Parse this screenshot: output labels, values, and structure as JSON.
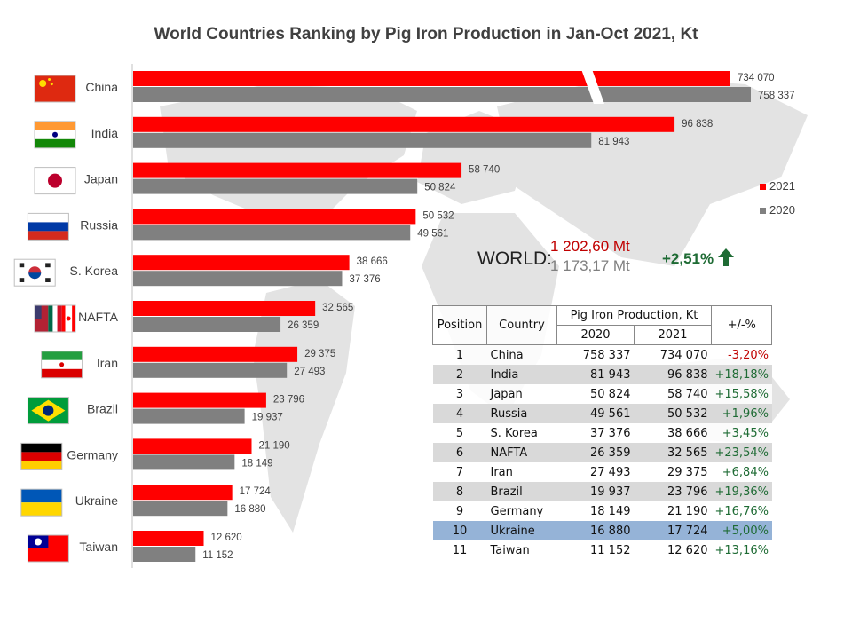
{
  "chart_data": {
    "type": "bar",
    "orientation": "horizontal",
    "title": "World Countries Ranking by Pig Iron Production in Jan-Oct 2021, Kt",
    "categories": [
      "China",
      "India",
      "Japan",
      "Russia",
      "S. Korea",
      "NAFTA",
      "Iran",
      "Brazil",
      "Germany",
      "Ukraine",
      "Taiwan"
    ],
    "series": [
      {
        "name": "2021",
        "color": "#ff0000",
        "values": [
          734070,
          96838,
          58740,
          50532,
          38666,
          32565,
          29375,
          23796,
          21190,
          17724,
          12620
        ],
        "labels": [
          "734 070",
          "96 838",
          "58 740",
          "50 532",
          "38 666",
          "32 565",
          "29 375",
          "23 796",
          "21 190",
          "17 724",
          "12 620"
        ]
      },
      {
        "name": "2020",
        "color": "#808080",
        "values": [
          758337,
          81943,
          50824,
          49561,
          37376,
          26359,
          27493,
          19937,
          18149,
          16880,
          11152
        ],
        "labels": [
          "758 337",
          "81 943",
          "50 824",
          "49 561",
          "37 376",
          "26 359",
          "27 493",
          "19 937",
          "18 149",
          "16 880",
          "11 152"
        ]
      }
    ],
    "axis_break": "China bars truncated",
    "legend_position": "right",
    "grid": false
  },
  "flags": {
    "China": "flag-china",
    "India": "flag-india",
    "Japan": "flag-japan",
    "Russia": "flag-russia",
    "S. Korea": "flag-south-korea",
    "NAFTA": "flag-nafta",
    "Iran": "flag-iran",
    "Brazil": "flag-brazil",
    "Germany": "flag-germany",
    "Ukraine": "flag-ukraine",
    "Taiwan": "flag-taiwan"
  },
  "world": {
    "label": "WORLD:",
    "value_2021": "1 202,60 Mt",
    "value_2020": "1 173,17 Mt",
    "change": "+2,51%",
    "change_icon": "up-arrow-icon",
    "color_2021": "#c00000",
    "color_2020": "#7f7f7f",
    "color_change": "#1e6b34"
  },
  "table": {
    "headers": {
      "position": "Position",
      "country": "Country",
      "production": "Pig Iron Production, Kt",
      "y2020": "2020",
      "y2021": "2021",
      "change": "+/-%"
    },
    "rows": [
      {
        "pos": "1",
        "country": "China",
        "v2020": "758 337",
        "v2021": "734 070",
        "change": "-3,20%"
      },
      {
        "pos": "2",
        "country": "India",
        "v2020": "81 943",
        "v2021": "96 838",
        "change": "+18,18%"
      },
      {
        "pos": "3",
        "country": "Japan",
        "v2020": "50 824",
        "v2021": "58 740",
        "change": "+15,58%"
      },
      {
        "pos": "4",
        "country": "Russia",
        "v2020": "49 561",
        "v2021": "50 532",
        "change": "+1,96%"
      },
      {
        "pos": "5",
        "country": "S. Korea",
        "v2020": "37 376",
        "v2021": "38 666",
        "change": "+3,45%"
      },
      {
        "pos": "6",
        "country": "NAFTA",
        "v2020": "26 359",
        "v2021": "32 565",
        "change": "+23,54%"
      },
      {
        "pos": "7",
        "country": "Iran",
        "v2020": "27 493",
        "v2021": "29 375",
        "change": "+6,84%"
      },
      {
        "pos": "8",
        "country": "Brazil",
        "v2020": "19 937",
        "v2021": "23 796",
        "change": "+19,36%"
      },
      {
        "pos": "9",
        "country": "Germany",
        "v2020": "18 149",
        "v2021": "21 190",
        "change": "+16,76%"
      },
      {
        "pos": "10",
        "country": "Ukraine",
        "v2020": "16 880",
        "v2021": "17 724",
        "change": "+5,00%",
        "highlight": true
      },
      {
        "pos": "11",
        "country": "Taiwan",
        "v2020": "11 152",
        "v2021": "12 620",
        "change": "+13,16%"
      }
    ],
    "colors": {
      "negative": "#c00000",
      "positive": "#1e6b34",
      "stripe": "#d9d9d9",
      "highlight": "#95b3d7"
    }
  }
}
